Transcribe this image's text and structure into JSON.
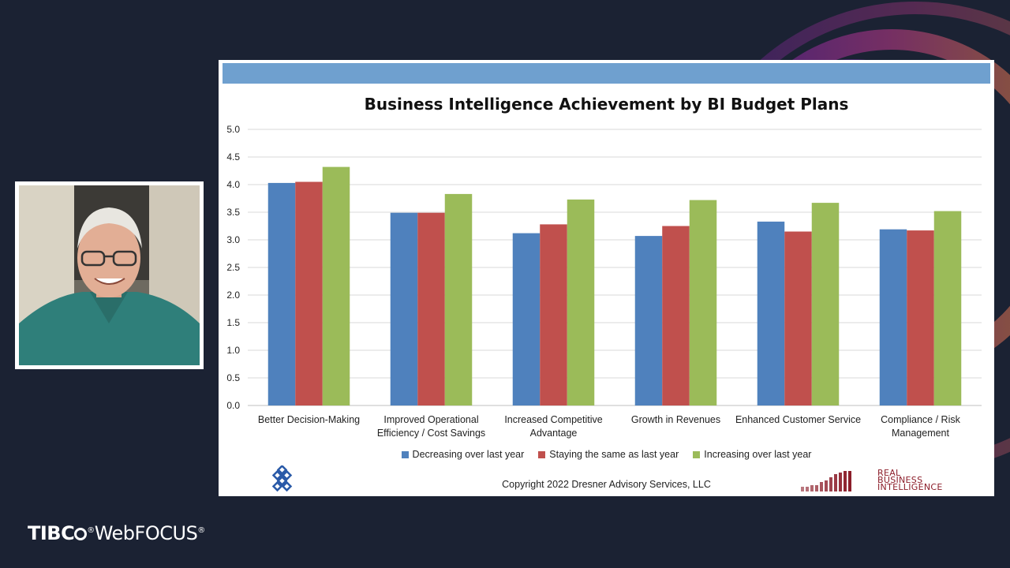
{
  "chart_data": {
    "type": "bar",
    "title": "Business Intelligence Achievement by BI Budget Plans",
    "categories": [
      [
        "Better Decision-Making"
      ],
      [
        "Improved Operational",
        "Efficiency / Cost Savings"
      ],
      [
        "Increased Competitive",
        "Advantage"
      ],
      [
        "Growth in Revenues"
      ],
      [
        "Enhanced Customer Service"
      ],
      [
        "Compliance / Risk",
        "Management"
      ]
    ],
    "series": [
      {
        "name": "Decreasing over last year",
        "color": "#4f81bd",
        "values": [
          4.03,
          3.49,
          3.12,
          3.07,
          3.33,
          3.19
        ]
      },
      {
        "name": "Staying the same as last year",
        "color": "#c0504d",
        "values": [
          4.05,
          3.49,
          3.28,
          3.25,
          3.15,
          3.17
        ]
      },
      {
        "name": "Increasing over last year",
        "color": "#9bbb59",
        "values": [
          4.32,
          3.83,
          3.73,
          3.72,
          3.67,
          3.52
        ]
      }
    ],
    "ylim": [
      0,
      5
    ],
    "yticks": [
      "0.0",
      "0.5",
      "1.0",
      "1.5",
      "2.0",
      "2.5",
      "3.0",
      "3.5",
      "4.0",
      "4.5",
      "5.0"
    ],
    "grid": true,
    "legend": "bottom"
  },
  "slide": {
    "copyright": "Copyright 2022 Dresner Advisory Services, LLC",
    "logo_text": [
      "REAL",
      "BUSINESS",
      "INTELLIGENCE"
    ]
  },
  "brand": {
    "name_left": "TIBC",
    "name_right": "WebFOCUS",
    "mark": "®"
  },
  "icons": {
    "left_logo": "knot-logo-icon",
    "right_logo": "bar-logo-icon"
  }
}
